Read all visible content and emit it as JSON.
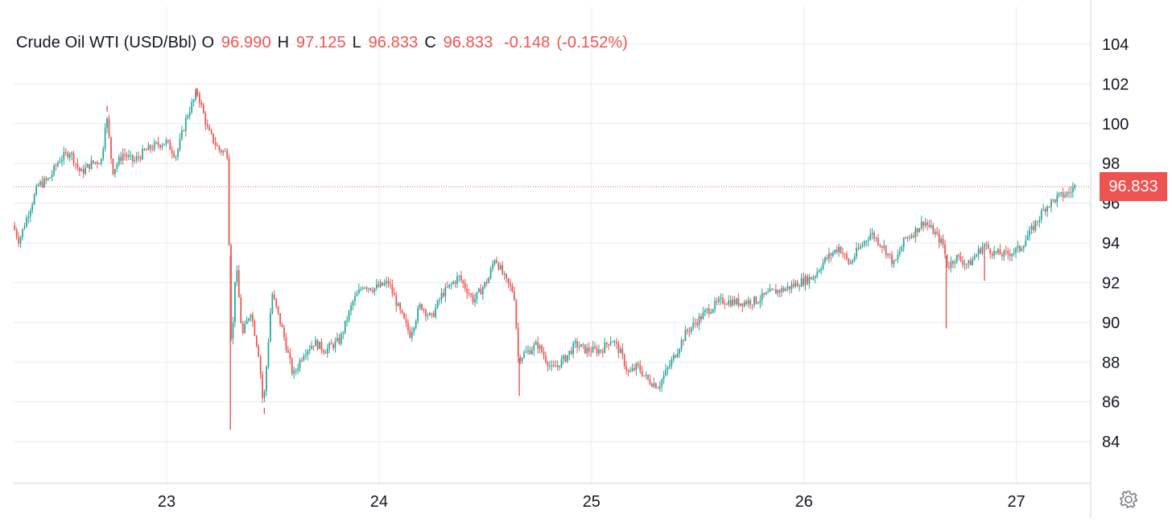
{
  "colors": {
    "up": "#26a69a",
    "down": "#ef5350",
    "grid": "#e8ecf0",
    "axis_text": "#131722",
    "last_price": "#ef5350"
  },
  "legend": {
    "symbol": "Crude Oil WTI (USD/Bbl)",
    "open_label": "O",
    "open": "96.990",
    "high_label": "H",
    "high": "97.125",
    "low_label": "L",
    "low": "96.833",
    "close_label": "C",
    "close": "96.833",
    "change": "-0.148",
    "change_pct": "(-0.152%)"
  },
  "last_price_label": "96.833",
  "settings_icon": "gear-icon",
  "chart_data": {
    "type": "candlestick",
    "title": "Crude Oil WTI (USD/Bbl)",
    "xlabel": "",
    "ylabel": "",
    "x_ticks": [
      {
        "x": 23,
        "label": "23"
      },
      {
        "x": 24,
        "label": "24"
      },
      {
        "x": 25,
        "label": "25"
      },
      {
        "x": 26,
        "label": "26"
      },
      {
        "x": 27,
        "label": "27"
      }
    ],
    "y_ticks": [
      84,
      86,
      88,
      90,
      92,
      94,
      96,
      98,
      100,
      102,
      104
    ],
    "xlim": [
      22.28,
      27.35
    ],
    "ylim": [
      81.9,
      105.9
    ],
    "grid": true,
    "last_price": 96.833,
    "price_path": [
      [
        22.28,
        94.9
      ],
      [
        22.31,
        94.1
      ],
      [
        22.35,
        95.4
      ],
      [
        22.4,
        96.9
      ],
      [
        22.45,
        97.2
      ],
      [
        22.5,
        98.2
      ],
      [
        22.55,
        98.6
      ],
      [
        22.6,
        97.5
      ],
      [
        22.65,
        98.0
      ],
      [
        22.7,
        98.2
      ],
      [
        22.72,
        100.6
      ],
      [
        22.75,
        97.6
      ],
      [
        22.8,
        98.5
      ],
      [
        22.85,
        98.1
      ],
      [
        22.9,
        98.6
      ],
      [
        22.95,
        98.9
      ],
      [
        23.0,
        99.1
      ],
      [
        23.05,
        98.4
      ],
      [
        23.1,
        100.4
      ],
      [
        23.15,
        101.6
      ],
      [
        23.2,
        99.6
      ],
      [
        23.25,
        98.7
      ],
      [
        23.29,
        98.5
      ],
      [
        23.31,
        88.2
      ],
      [
        23.33,
        93.1
      ],
      [
        23.36,
        89.3
      ],
      [
        23.4,
        90.6
      ],
      [
        23.44,
        88.3
      ],
      [
        23.46,
        85.7
      ],
      [
        23.5,
        91.5
      ],
      [
        23.55,
        89.6
      ],
      [
        23.6,
        87.3
      ],
      [
        23.65,
        88.5
      ],
      [
        23.7,
        89.0
      ],
      [
        23.75,
        88.6
      ],
      [
        23.82,
        89.1
      ],
      [
        23.88,
        91.0
      ],
      [
        23.93,
        91.9
      ],
      [
        23.98,
        91.7
      ],
      [
        24.05,
        92.0
      ],
      [
        24.1,
        90.6
      ],
      [
        24.15,
        89.4
      ],
      [
        24.2,
        90.9
      ],
      [
        24.25,
        90.2
      ],
      [
        24.3,
        91.4
      ],
      [
        24.38,
        92.3
      ],
      [
        24.45,
        91.1
      ],
      [
        24.52,
        92.2
      ],
      [
        24.55,
        93.3
      ],
      [
        24.6,
        92.1
      ],
      [
        24.64,
        91.5
      ],
      [
        24.66,
        88.2
      ],
      [
        24.7,
        88.5
      ],
      [
        24.75,
        88.9
      ],
      [
        24.82,
        87.6
      ],
      [
        24.88,
        88.2
      ],
      [
        24.93,
        88.9
      ],
      [
        24.98,
        88.6
      ],
      [
        25.05,
        88.6
      ],
      [
        25.1,
        89.2
      ],
      [
        25.14,
        88.5
      ],
      [
        25.18,
        87.4
      ],
      [
        25.22,
        87.8
      ],
      [
        25.27,
        87.1
      ],
      [
        25.32,
        86.8
      ],
      [
        25.38,
        88.0
      ],
      [
        25.45,
        89.5
      ],
      [
        25.55,
        90.6
      ],
      [
        25.62,
        91.1
      ],
      [
        25.7,
        91.0
      ],
      [
        25.78,
        91.1
      ],
      [
        25.85,
        91.5
      ],
      [
        25.92,
        91.7
      ],
      [
        25.98,
        92.0
      ],
      [
        26.05,
        92.3
      ],
      [
        26.1,
        93.1
      ],
      [
        26.17,
        93.8
      ],
      [
        26.22,
        92.9
      ],
      [
        26.25,
        93.5
      ],
      [
        26.32,
        94.5
      ],
      [
        26.38,
        93.8
      ],
      [
        26.43,
        92.9
      ],
      [
        26.48,
        94.2
      ],
      [
        26.52,
        94.5
      ],
      [
        26.57,
        95.1
      ],
      [
        26.62,
        94.5
      ],
      [
        26.66,
        93.9
      ],
      [
        26.68,
        92.8
      ],
      [
        26.72,
        93.3
      ],
      [
        26.78,
        92.9
      ],
      [
        26.85,
        93.9
      ],
      [
        26.9,
        93.5
      ],
      [
        26.95,
        93.4
      ],
      [
        27.02,
        93.7
      ],
      [
        27.08,
        94.7
      ],
      [
        27.14,
        95.8
      ],
      [
        27.2,
        96.3
      ],
      [
        27.25,
        96.5
      ],
      [
        27.28,
        96.83
      ]
    ],
    "spikes": [
      {
        "x": 23.3,
        "low": 84.6
      },
      {
        "x": 23.46,
        "low": 85.4
      },
      {
        "x": 24.66,
        "low": 86.3
      },
      {
        "x": 26.67,
        "low": 89.7
      },
      {
        "x": 26.85,
        "low": 92.1
      },
      {
        "x": 22.72,
        "high": 100.9
      },
      {
        "x": 23.14,
        "high": 101.8
      }
    ]
  }
}
